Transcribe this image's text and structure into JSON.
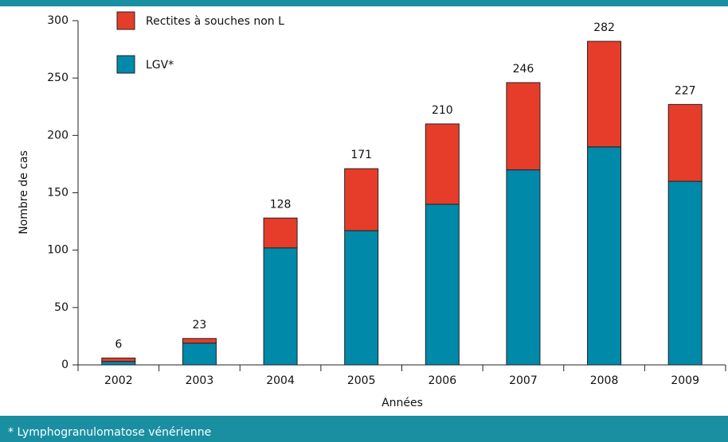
{
  "chart_data": {
    "type": "stacked_bar",
    "x_label": "Années",
    "y_label": "Nombre de cas",
    "categories": [
      "2002",
      "2003",
      "2004",
      "2005",
      "2006",
      "2007",
      "2008",
      "2009"
    ],
    "series": [
      {
        "name": "LGV*",
        "color": "#0089a9",
        "values": [
          3,
          19,
          102,
          117,
          140,
          170,
          190,
          160
        ]
      },
      {
        "name": "Rectites à souches non L",
        "color": "#e63d2a",
        "values": [
          3,
          4,
          26,
          54,
          70,
          76,
          92,
          67
        ]
      }
    ],
    "totals": [
      6,
      23,
      128,
      171,
      210,
      246,
      282,
      227
    ],
    "ylim": [
      0,
      300
    ],
    "yticks": [
      0,
      50,
      100,
      150,
      200,
      250,
      300
    ],
    "footnote": "* Lymphogranulomatose vénérienne"
  }
}
